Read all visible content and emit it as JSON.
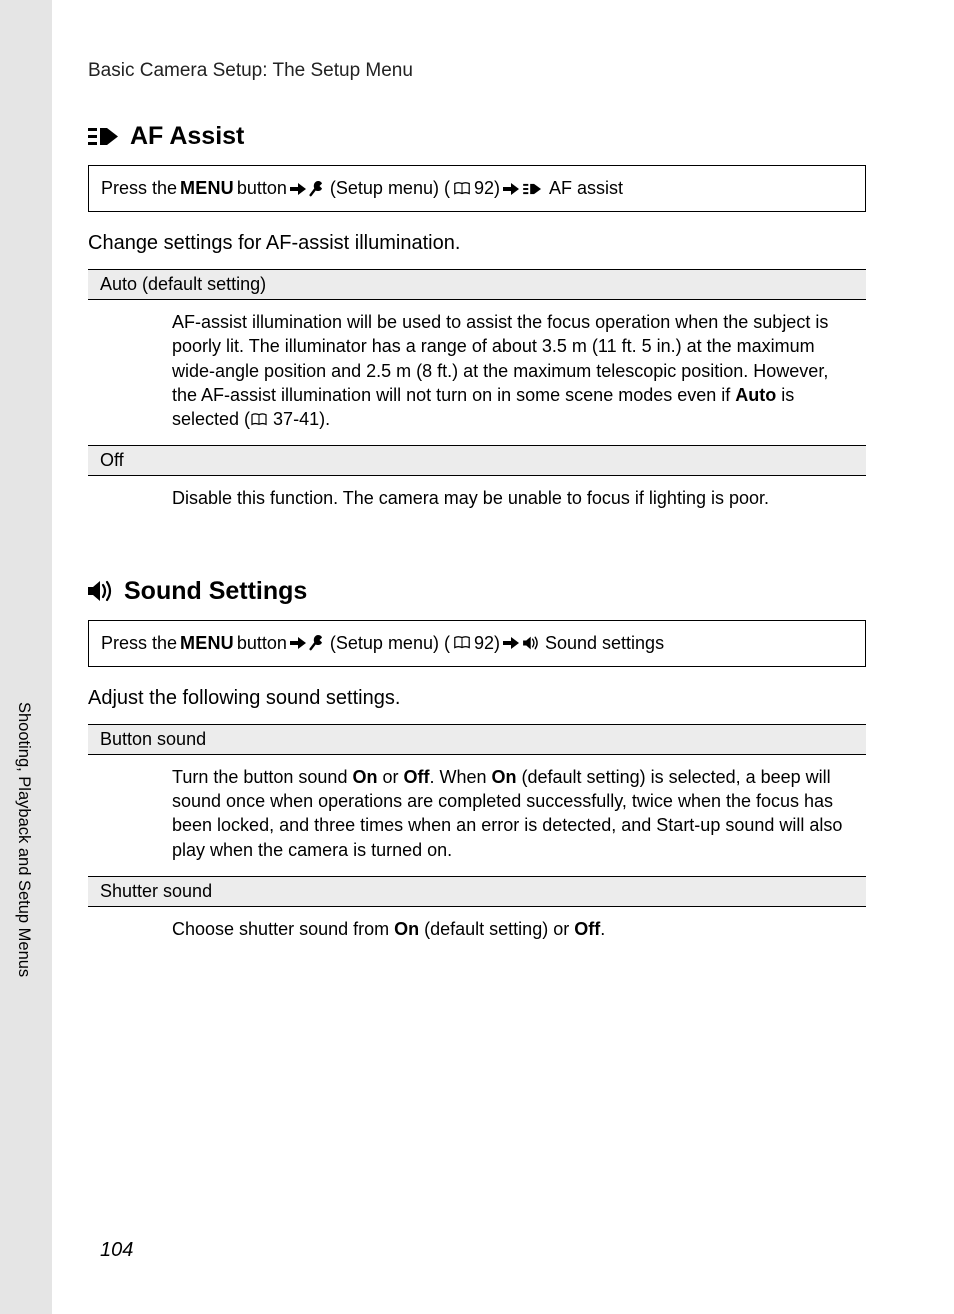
{
  "page": {
    "chapter_title": "Basic Camera Setup: The Setup Menu",
    "side_label": "Shooting, Playback and Setup Menus",
    "page_number": "104"
  },
  "colors": {
    "page_bg": "#ffffff",
    "outer_bg": "#e5e5e5",
    "row_header_bg": "#ececec",
    "text": "#000000",
    "border": "#000000"
  },
  "nav": {
    "press_the": "Press the ",
    "menu_word": "MENU",
    "button_word": " button",
    "setup_menu": " (Setup menu) (",
    "page_ref_92": " 92)",
    "af_assist_path": " AF assist",
    "sound_path": " Sound settings"
  },
  "af": {
    "title": "AF Assist",
    "intro": "Change settings for AF-assist illumination.",
    "rows": [
      {
        "header": "Auto (default setting)",
        "body_pre": "AF-assist illumination will be used to assist the focus operation when the subject is poorly lit. The illuminator has a range of about 3.5 m (11 ft. 5 in.) at the maximum wide-angle position and 2.5 m (8 ft.) at the maximum telescopic position. However, the AF-assist illumination will not turn on in some scene modes even if ",
        "body_bold": "Auto",
        "body_mid": " is selected (",
        "body_ref": " 37-41).",
        "has_ref_icon": true
      },
      {
        "header": "Off",
        "body_pre": "Disable this function. The camera may be unable to focus if lighting is poor.",
        "body_bold": "",
        "body_mid": "",
        "body_ref": "",
        "has_ref_icon": false
      }
    ]
  },
  "sound": {
    "title": "Sound Settings",
    "intro": "Adjust the following sound settings.",
    "rows": [
      {
        "header": "Button sound",
        "segments": [
          {
            "t": "Turn the button sound ",
            "b": false
          },
          {
            "t": "On",
            "b": true
          },
          {
            "t": " or ",
            "b": false
          },
          {
            "t": "Off",
            "b": true
          },
          {
            "t": ". When ",
            "b": false
          },
          {
            "t": "On",
            "b": true
          },
          {
            "t": " (default setting) is selected, a beep will sound once when operations are completed successfully, twice when the focus has been locked, and three times when an error is detected, and Start-up sound will also play when the camera is turned on.",
            "b": false
          }
        ]
      },
      {
        "header": "Shutter sound",
        "segments": [
          {
            "t": "Choose shutter sound from ",
            "b": false
          },
          {
            "t": "On",
            "b": true
          },
          {
            "t": " (default setting) or ",
            "b": false
          },
          {
            "t": "Off",
            "b": true
          },
          {
            "t": ".",
            "b": false
          }
        ]
      }
    ]
  }
}
